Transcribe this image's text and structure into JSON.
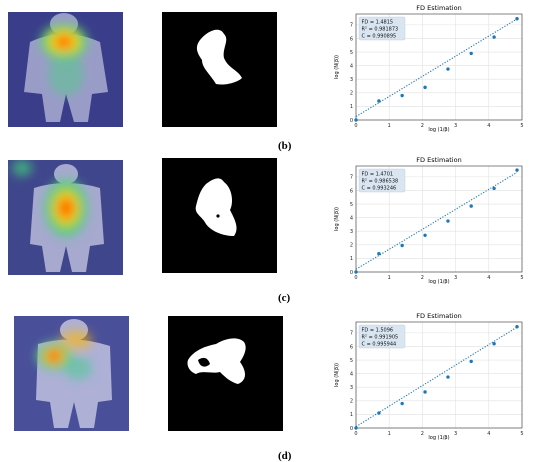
{
  "panels": [
    {
      "label": "(b)"
    },
    {
      "label": "(c)"
    },
    {
      "label": "(d)"
    }
  ],
  "colors": {
    "series": "#1f77b4",
    "stats_box": "#d9e6f2",
    "mask_bg": "#000000",
    "mask_fg": "#ffffff"
  },
  "chart_data": [
    {
      "type": "scatter",
      "title": "FD Estimation",
      "xlabel": "log (1/β)",
      "ylabel": "log (N(β))",
      "stats": [
        "FD = 1.4815",
        "R² = 0.981873",
        "C = 0.990895"
      ],
      "x": [
        0,
        0.69,
        1.39,
        2.08,
        2.77,
        3.47,
        4.16,
        4.85
      ],
      "y": [
        0,
        1.4,
        1.8,
        2.4,
        3.75,
        4.9,
        6.1,
        7.45
      ],
      "trend": {
        "slope": 1.4815,
        "intercept": 0.25,
        "style": "dotted"
      },
      "xlim": [
        0,
        5
      ],
      "ylim": [
        0,
        7.8
      ],
      "xticks": [
        "0",
        "1",
        "2",
        "3",
        "4",
        "5"
      ],
      "yticks": [
        "0",
        "1",
        "2",
        "3",
        "4",
        "5",
        "6",
        "7"
      ],
      "grid": true
    },
    {
      "type": "scatter",
      "title": "FD Estimation",
      "xlabel": "log (1/β)",
      "ylabel": "log (N(β))",
      "stats": [
        "FD = 1.4701",
        "R² = 0.986538",
        "C = 0.993246"
      ],
      "x": [
        0,
        0.69,
        1.39,
        2.08,
        2.77,
        3.47,
        4.16,
        4.85
      ],
      "y": [
        0,
        1.35,
        1.95,
        2.7,
        3.75,
        4.85,
        6.15,
        7.5
      ],
      "trend": {
        "slope": 1.4701,
        "intercept": 0.2,
        "style": "dotted"
      },
      "xlim": [
        0,
        5
      ],
      "ylim": [
        0,
        7.8
      ],
      "xticks": [
        "0",
        "1",
        "2",
        "3",
        "4",
        "5"
      ],
      "yticks": [
        "0",
        "1",
        "2",
        "3",
        "4",
        "5",
        "6",
        "7"
      ],
      "grid": true
    },
    {
      "type": "scatter",
      "title": "FD Estimation",
      "xlabel": "log (1/β)",
      "ylabel": "log (N(β))",
      "stats": [
        "FD = 1.5096",
        "R² = 0.991905",
        "C = 0.995944"
      ],
      "x": [
        0,
        0.69,
        1.39,
        2.08,
        2.77,
        3.47,
        4.16,
        4.85
      ],
      "y": [
        0,
        1.1,
        1.8,
        2.65,
        3.75,
        4.9,
        6.2,
        7.45
      ],
      "trend": {
        "slope": 1.5096,
        "intercept": 0.1,
        "style": "dotted"
      },
      "xlim": [
        0,
        5
      ],
      "ylim": [
        0,
        7.8
      ],
      "xticks": [
        "0",
        "1",
        "2",
        "3",
        "4",
        "5"
      ],
      "yticks": [
        "0",
        "1",
        "2",
        "3",
        "4",
        "5",
        "6",
        "7"
      ],
      "grid": true
    }
  ]
}
